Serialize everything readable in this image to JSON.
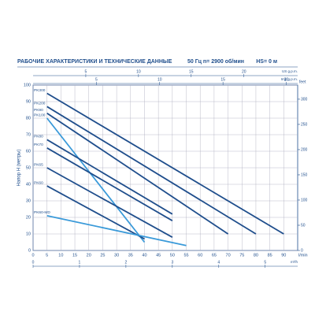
{
  "chart_data": {
    "type": "line",
    "title": "РАБОЧИЕ ХАРАКТЕРИСТИКИ И ТЕХНИЧЕСКИЕ ДАННЫЕ",
    "frequency": "50 Гц",
    "speed": "n= 2900 об/мин",
    "suction": "HS= 0 м",
    "y_label": "Напор H (метры)",
    "y2_label": "feet",
    "x_label": "l/min",
    "x2_label": "m³/h",
    "x3_label": "US g.p.m.",
    "x4_label": "Imp g.p.m.",
    "xlim": [
      0,
      95
    ],
    "xticks": [
      0,
      5,
      10,
      15,
      20,
      25,
      30,
      35,
      40,
      45,
      50,
      55,
      60,
      65,
      70,
      75,
      80,
      85,
      90
    ],
    "ylim": [
      0,
      100
    ],
    "yticks": [
      0,
      10,
      20,
      30,
      40,
      50,
      60,
      70,
      80,
      90,
      100
    ],
    "y2lim": [
      0,
      328
    ],
    "y2ticks": [
      0,
      50,
      100,
      150,
      200,
      250,
      300
    ],
    "x2lim": [
      0,
      5.7
    ],
    "x2ticks": [
      0,
      1,
      2,
      3,
      4,
      5
    ],
    "x3lim": [
      0,
      25.1
    ],
    "x3ticks": [
      5,
      10,
      15,
      20
    ],
    "x4lim": [
      0,
      20.9
    ],
    "x4ticks": [
      5,
      10,
      15,
      20
    ],
    "grid": true,
    "series": [
      {
        "name": "PK300",
        "color": "#1f4e8c",
        "x": [
          5,
          90
        ],
        "values": [
          95,
          10
        ]
      },
      {
        "name": "PK200",
        "color": "#1f4e8c",
        "x": [
          5,
          80
        ],
        "values": [
          87,
          10
        ]
      },
      {
        "name": "PK90",
        "color": "#1f4e8c",
        "x": [
          5,
          70
        ],
        "values": [
          83,
          10
        ]
      },
      {
        "name": "PK100",
        "color": "#3a9ad9",
        "x": [
          5,
          40
        ],
        "values": [
          80,
          5
        ]
      },
      {
        "name": "PK80",
        "color": "#1f4e8c",
        "x": [
          5,
          50
        ],
        "values": [
          67,
          22
        ]
      },
      {
        "name": "PK70",
        "color": "#1f4e8c",
        "x": [
          5,
          50
        ],
        "values": [
          62,
          18
        ]
      },
      {
        "name": "PK65",
        "color": "#1f4e8c",
        "x": [
          5,
          50
        ],
        "values": [
          50,
          8
        ]
      },
      {
        "name": "PK60",
        "color": "#1f4e8c",
        "x": [
          5,
          40
        ],
        "values": [
          39,
          7
        ]
      },
      {
        "name": "PK60-MD",
        "color": "#3a9ad9",
        "x": [
          5,
          55
        ],
        "values": [
          21,
          3
        ]
      }
    ]
  }
}
